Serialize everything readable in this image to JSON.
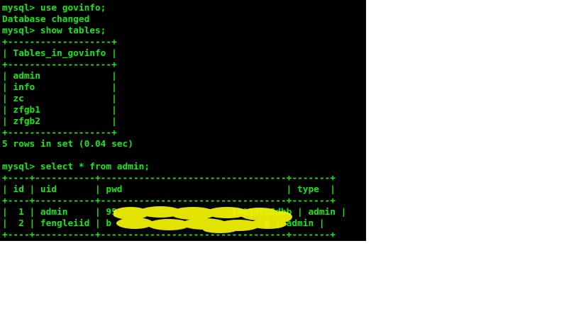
{
  "terminal": {
    "lines": [
      "mysql> use govinfo;",
      "Database changed",
      "mysql> show tables;",
      "+-------------------+",
      "| Tables_in_govinfo |",
      "+-------------------+",
      "| admin             |",
      "| info              |",
      "| zc                |",
      "| zfgb1             |",
      "| zfgb2             |",
      "+-------------------+",
      "5 rows in set (0.04 sec)",
      "",
      "mysql> select * from admin;",
      "+----+-----------+----------------------------------+-------+",
      "| id | uid       | pwd                              | type  |",
      "+----+-----------+----------------------------------+-------+",
      "|  1 | admin     | 95                     1903d6b5dbb | admin |",
      "|  2 | fengleiid | b                            8 | admin |",
      "+----+-----------+----------------------------------+-------+"
    ]
  },
  "colors": {
    "terminal_background": "#000000",
    "terminal_text": "#19e619",
    "redaction_mark": "#f5f500",
    "page_background": "#ffffff"
  }
}
